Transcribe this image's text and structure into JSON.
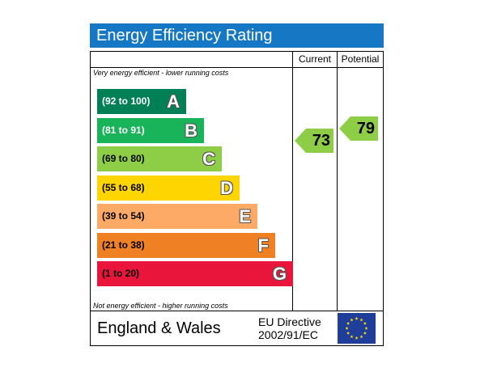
{
  "title": "Energy Efficiency Rating",
  "columns": {
    "current": "Current",
    "potential": "Potential"
  },
  "top_note": "Very energy efficient - lower running costs",
  "bottom_note": "Not energy efficient - higher running costs",
  "footer": {
    "region": "England & Wales",
    "directive_line1": "EU Directive",
    "directive_line2": "2002/91/EC"
  },
  "chart_data": {
    "type": "bar",
    "categories": [
      "A",
      "B",
      "C",
      "D",
      "E",
      "F",
      "G"
    ],
    "ranges": [
      "(92 to 100)",
      "(81 to 91)",
      "(69 to 80)",
      "(55 to 68)",
      "(39 to 54)",
      "(21 to 38)",
      "(1 to 20)"
    ],
    "colors": [
      "#008054",
      "#19b459",
      "#8dce46",
      "#ffd500",
      "#fcaa65",
      "#ef8023",
      "#e9153b"
    ],
    "range_text_colors": [
      "#ffffff",
      "#ffffff",
      "#000000",
      "#000000",
      "#000000",
      "#000000",
      "#000000"
    ],
    "current": {
      "value": 73,
      "band": "C",
      "color": "#8dce46"
    },
    "potential": {
      "value": 79,
      "band": "C",
      "color": "#8dce46"
    }
  },
  "icons": {
    "flag": "eu-flag-icon"
  }
}
